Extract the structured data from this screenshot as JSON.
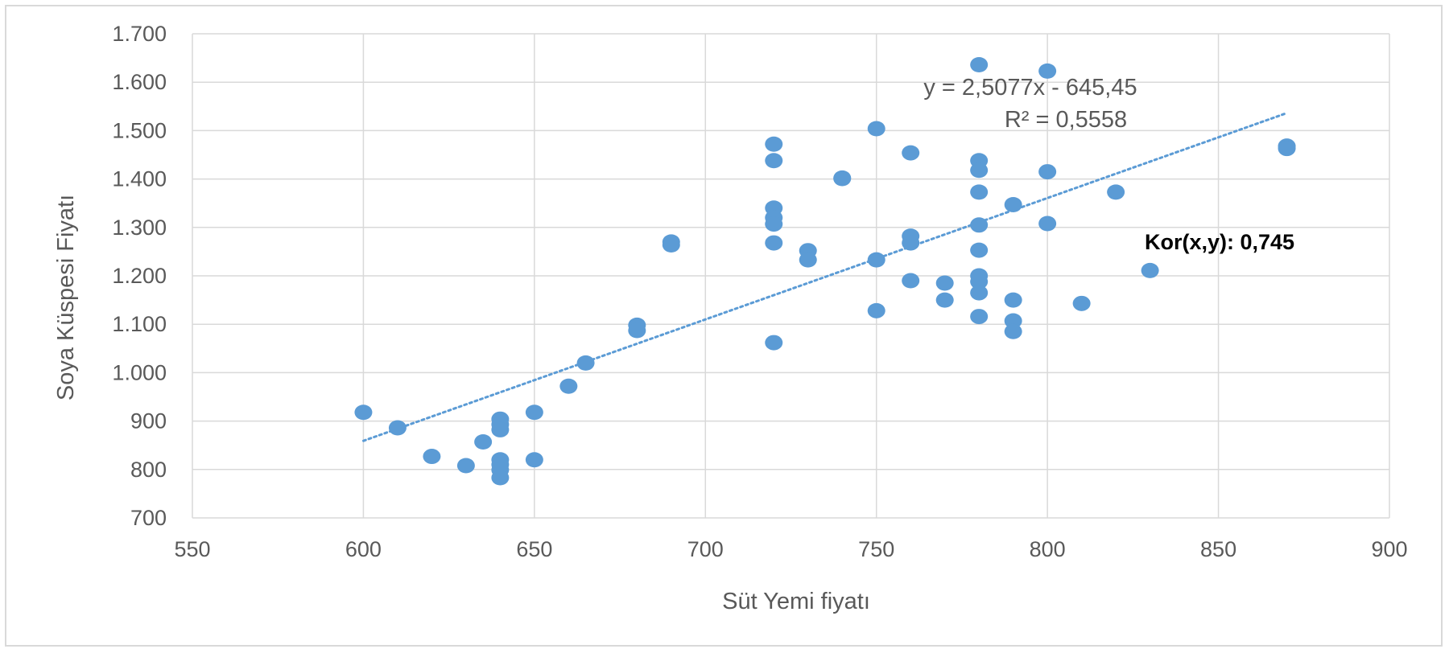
{
  "chart_data": {
    "type": "scatter",
    "xlabel": "Süt Yemi fiyatı",
    "ylabel": "Soya Küspesi Fiyatı",
    "xlim": [
      550,
      900
    ],
    "ylim": [
      700,
      1700
    ],
    "x_ticks": [
      "550",
      "600",
      "650",
      "700",
      "750",
      "800",
      "850",
      "900"
    ],
    "y_ticks": [
      "700",
      "800",
      "900",
      "1.000",
      "1.100",
      "1.200",
      "1.300",
      "1.400",
      "1.500",
      "1.600",
      "1.700"
    ],
    "grid": true,
    "marker_color": "#5b9bd5",
    "trendline": {
      "type": "linear",
      "slope": 2.5077,
      "intercept": -645.45,
      "x_range": [
        600,
        870
      ],
      "equation": "y = 2,5077x - 645,45",
      "r_squared": "R² = 0,5558",
      "color": "#5b9bd5",
      "style": "dotted"
    },
    "annotation": "Kor(x,y): 0,745",
    "points": [
      {
        "x": 600,
        "y": 918
      },
      {
        "x": 610,
        "y": 886
      },
      {
        "x": 620,
        "y": 827
      },
      {
        "x": 630,
        "y": 808
      },
      {
        "x": 635,
        "y": 857
      },
      {
        "x": 640,
        "y": 904
      },
      {
        "x": 640,
        "y": 893
      },
      {
        "x": 640,
        "y": 882
      },
      {
        "x": 640,
        "y": 820
      },
      {
        "x": 640,
        "y": 810
      },
      {
        "x": 640,
        "y": 799
      },
      {
        "x": 640,
        "y": 783
      },
      {
        "x": 650,
        "y": 918
      },
      {
        "x": 650,
        "y": 820
      },
      {
        "x": 660,
        "y": 972
      },
      {
        "x": 665,
        "y": 1020
      },
      {
        "x": 680,
        "y": 1098
      },
      {
        "x": 680,
        "y": 1087
      },
      {
        "x": 690,
        "y": 1270
      },
      {
        "x": 690,
        "y": 1264
      },
      {
        "x": 720,
        "y": 1472
      },
      {
        "x": 720,
        "y": 1438
      },
      {
        "x": 720,
        "y": 1340
      },
      {
        "x": 720,
        "y": 1320
      },
      {
        "x": 720,
        "y": 1307
      },
      {
        "x": 720,
        "y": 1268
      },
      {
        "x": 720,
        "y": 1062
      },
      {
        "x": 730,
        "y": 1252
      },
      {
        "x": 730,
        "y": 1233
      },
      {
        "x": 740,
        "y": 1402
      },
      {
        "x": 740,
        "y": 1401
      },
      {
        "x": 750,
        "y": 1504
      },
      {
        "x": 750,
        "y": 1233
      },
      {
        "x": 750,
        "y": 1128
      },
      {
        "x": 760,
        "y": 1454
      },
      {
        "x": 760,
        "y": 1282
      },
      {
        "x": 760,
        "y": 1268
      },
      {
        "x": 760,
        "y": 1190
      },
      {
        "x": 770,
        "y": 1185
      },
      {
        "x": 770,
        "y": 1150
      },
      {
        "x": 780,
        "y": 1636
      },
      {
        "x": 780,
        "y": 1438
      },
      {
        "x": 780,
        "y": 1418
      },
      {
        "x": 780,
        "y": 1373
      },
      {
        "x": 780,
        "y": 1305
      },
      {
        "x": 780,
        "y": 1253
      },
      {
        "x": 780,
        "y": 1200
      },
      {
        "x": 780,
        "y": 1188
      },
      {
        "x": 780,
        "y": 1165
      },
      {
        "x": 780,
        "y": 1116
      },
      {
        "x": 790,
        "y": 1347
      },
      {
        "x": 790,
        "y": 1150
      },
      {
        "x": 790,
        "y": 1107
      },
      {
        "x": 790,
        "y": 1085
      },
      {
        "x": 800,
        "y": 1623
      },
      {
        "x": 800,
        "y": 1415
      },
      {
        "x": 800,
        "y": 1308
      },
      {
        "x": 810,
        "y": 1143
      },
      {
        "x": 820,
        "y": 1373
      },
      {
        "x": 830,
        "y": 1211
      },
      {
        "x": 870,
        "y": 1468
      },
      {
        "x": 870,
        "y": 1463
      }
    ]
  }
}
